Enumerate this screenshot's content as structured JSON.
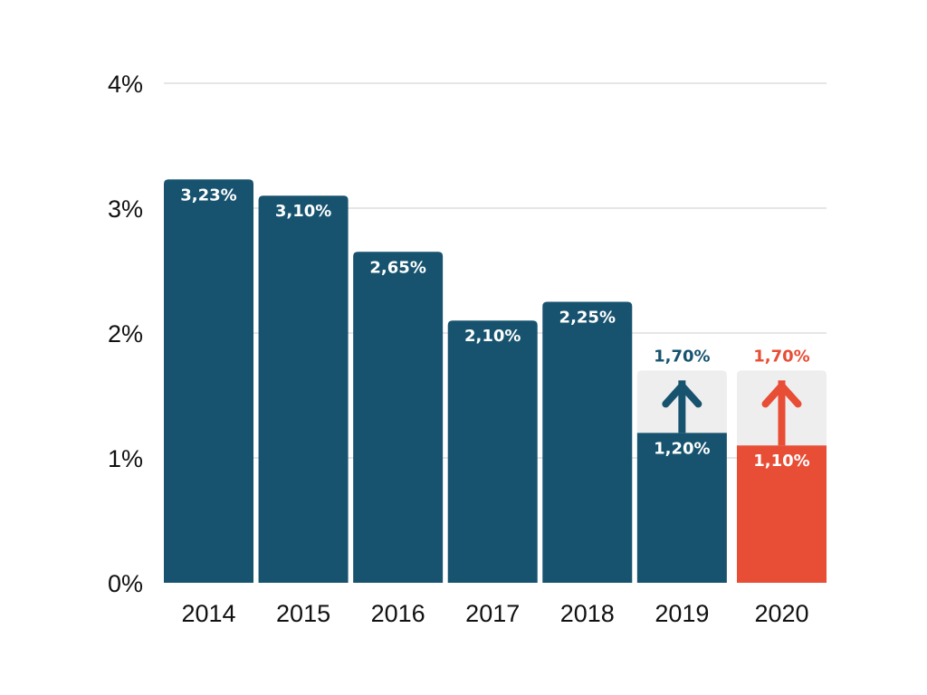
{
  "chart_data": {
    "type": "bar",
    "categories": [
      "2014",
      "2015",
      "2016",
      "2017",
      "2018",
      "2019",
      "2020"
    ],
    "values": [
      3.23,
      3.1,
      2.65,
      2.1,
      2.25,
      1.2,
      1.1
    ],
    "value_labels": [
      "3,23%",
      "3,10%",
      "2,65%",
      "2,10%",
      "2,25%",
      "1,20%",
      "1,10%"
    ],
    "targets": [
      null,
      null,
      null,
      null,
      null,
      1.7,
      1.7
    ],
    "target_labels": [
      null,
      null,
      null,
      null,
      null,
      "1,70%",
      "1,70%"
    ],
    "highlight_index": 6,
    "ylim": [
      0,
      4
    ],
    "yticks": [
      0,
      1,
      2,
      3,
      4
    ],
    "ytick_labels": [
      "0%",
      "1%",
      "2%",
      "3%",
      "4%"
    ],
    "grid": true,
    "title": "",
    "xlabel": "",
    "ylabel": "",
    "colors": {
      "bar": "#17536f",
      "highlight": "#e84d35",
      "target_band": "#eeeeee",
      "grid": "#dddddd",
      "label_inside": "#ffffff"
    }
  }
}
